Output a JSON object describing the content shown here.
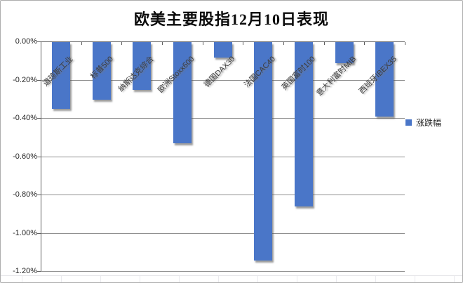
{
  "title": "欧美主要股指12月10日表现",
  "legend": {
    "label": "涨跌幅",
    "swatch_color": "#4a76c8"
  },
  "chart_data": {
    "type": "bar",
    "title": "欧美主要股指12月10日表现",
    "categories": [
      "道琼斯工业",
      "标普500",
      "纳斯达克综合",
      "欧洲Stoxx600",
      "德国DAX30",
      "法国CAC40",
      "英国富时100",
      "意大利富时MIB",
      "西班牙IBEX35"
    ],
    "series": [
      {
        "name": "涨跌幅",
        "values": [
          -0.35,
          -0.3,
          -0.25,
          -0.53,
          -0.08,
          -1.14,
          -0.86,
          -0.11,
          -0.39
        ]
      }
    ],
    "value_unit": "%",
    "ylabel": "",
    "xlabel": "",
    "ylim": [
      -1.2,
      0.0
    ],
    "ytick_step": 0.2,
    "ytick_labels": [
      "0.00%",
      "-0.20%",
      "-0.40%",
      "-0.60%",
      "-0.80%",
      "-1.00%",
      "-1.20%"
    ],
    "grid": true,
    "legend_position": "right",
    "bar_color": "#4a76c8"
  }
}
